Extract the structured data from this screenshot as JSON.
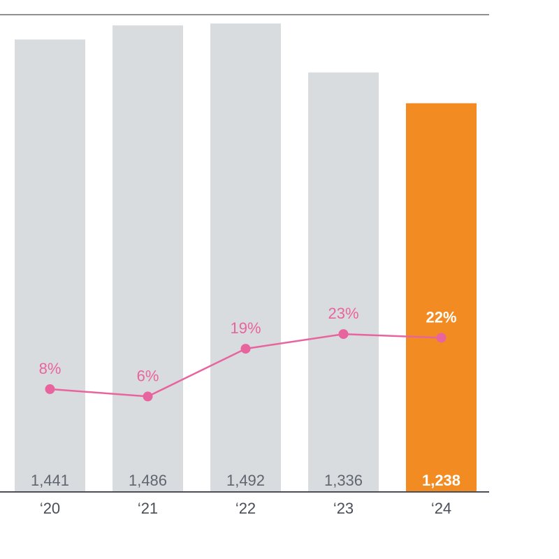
{
  "chart_data": {
    "type": "bar",
    "categories": [
      "‘20",
      "‘21",
      "‘22",
      "‘23",
      "‘24"
    ],
    "bar_values": [
      1441,
      1486,
      1492,
      1336,
      1238
    ],
    "bar_value_labels": [
      "1,441",
      "1,486",
      "1,492",
      "1,336",
      "1,238"
    ],
    "line_values": [
      8,
      6,
      19,
      23,
      22
    ],
    "line_value_labels": [
      "8%",
      "6%",
      "19%",
      "23%",
      "22%"
    ],
    "ylim": [
      0,
      1520
    ],
    "line_ylim": [
      -20,
      110
    ],
    "highlight_index": 4,
    "grid": false,
    "title": "",
    "xlabel": "",
    "ylabel": ""
  },
  "colors": {
    "bar": "#d9dcdf",
    "highlight_bar": "#f28c22",
    "line": "#e8649e",
    "axis": "#4a4f57"
  }
}
